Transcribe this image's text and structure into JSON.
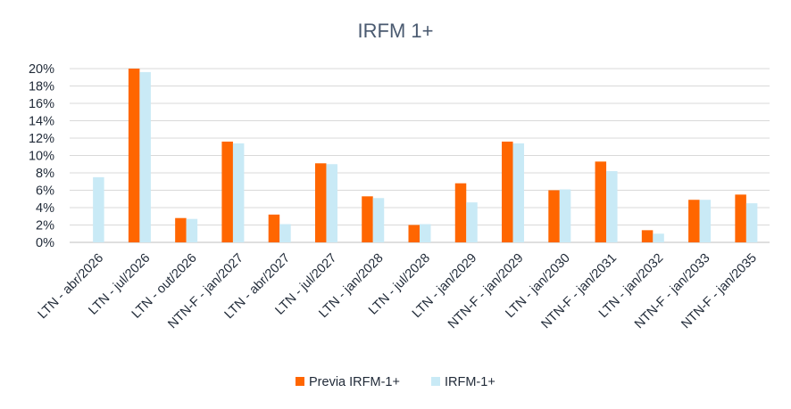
{
  "chart_data": {
    "type": "bar",
    "title": "IRFM 1+",
    "xlabel": "",
    "ylabel": "",
    "ylim": [
      0,
      20
    ],
    "yticks": [
      "0%",
      "2%",
      "4%",
      "6%",
      "8%",
      "10%",
      "12%",
      "14%",
      "16%",
      "18%",
      "20%"
    ],
    "grid": true,
    "legend_position": "bottom",
    "categories": [
      "LTN - abr/2026",
      "LTN - jul/2026",
      "LTN - out/2026",
      "NTN-F - jan/2027",
      "LTN - abr/2027",
      "LTN - jul/2027",
      "LTN - jan/2028",
      "LTN - jul/2028",
      "LTN - jan/2029",
      "NTN-F - jan/2029",
      "LTN - jan/2030",
      "NTN-F - jan/2031",
      "LTN - jan/2032",
      "NTN-F - jan/2033",
      "NTN-F - jan/2035"
    ],
    "series": [
      {
        "name": "Previa IRFM-1+",
        "color": "#ff6600",
        "values": [
          0,
          20.0,
          2.8,
          11.6,
          3.2,
          9.1,
          5.3,
          2.0,
          6.8,
          11.6,
          6.0,
          9.3,
          1.4,
          4.9,
          5.5
        ]
      },
      {
        "name": "IRFM-1+",
        "color": "#c9eaf6",
        "values": [
          7.5,
          19.6,
          2.7,
          11.4,
          2.1,
          9.0,
          5.1,
          2.1,
          4.6,
          11.4,
          6.1,
          8.2,
          1.0,
          4.9,
          4.5
        ]
      }
    ]
  }
}
